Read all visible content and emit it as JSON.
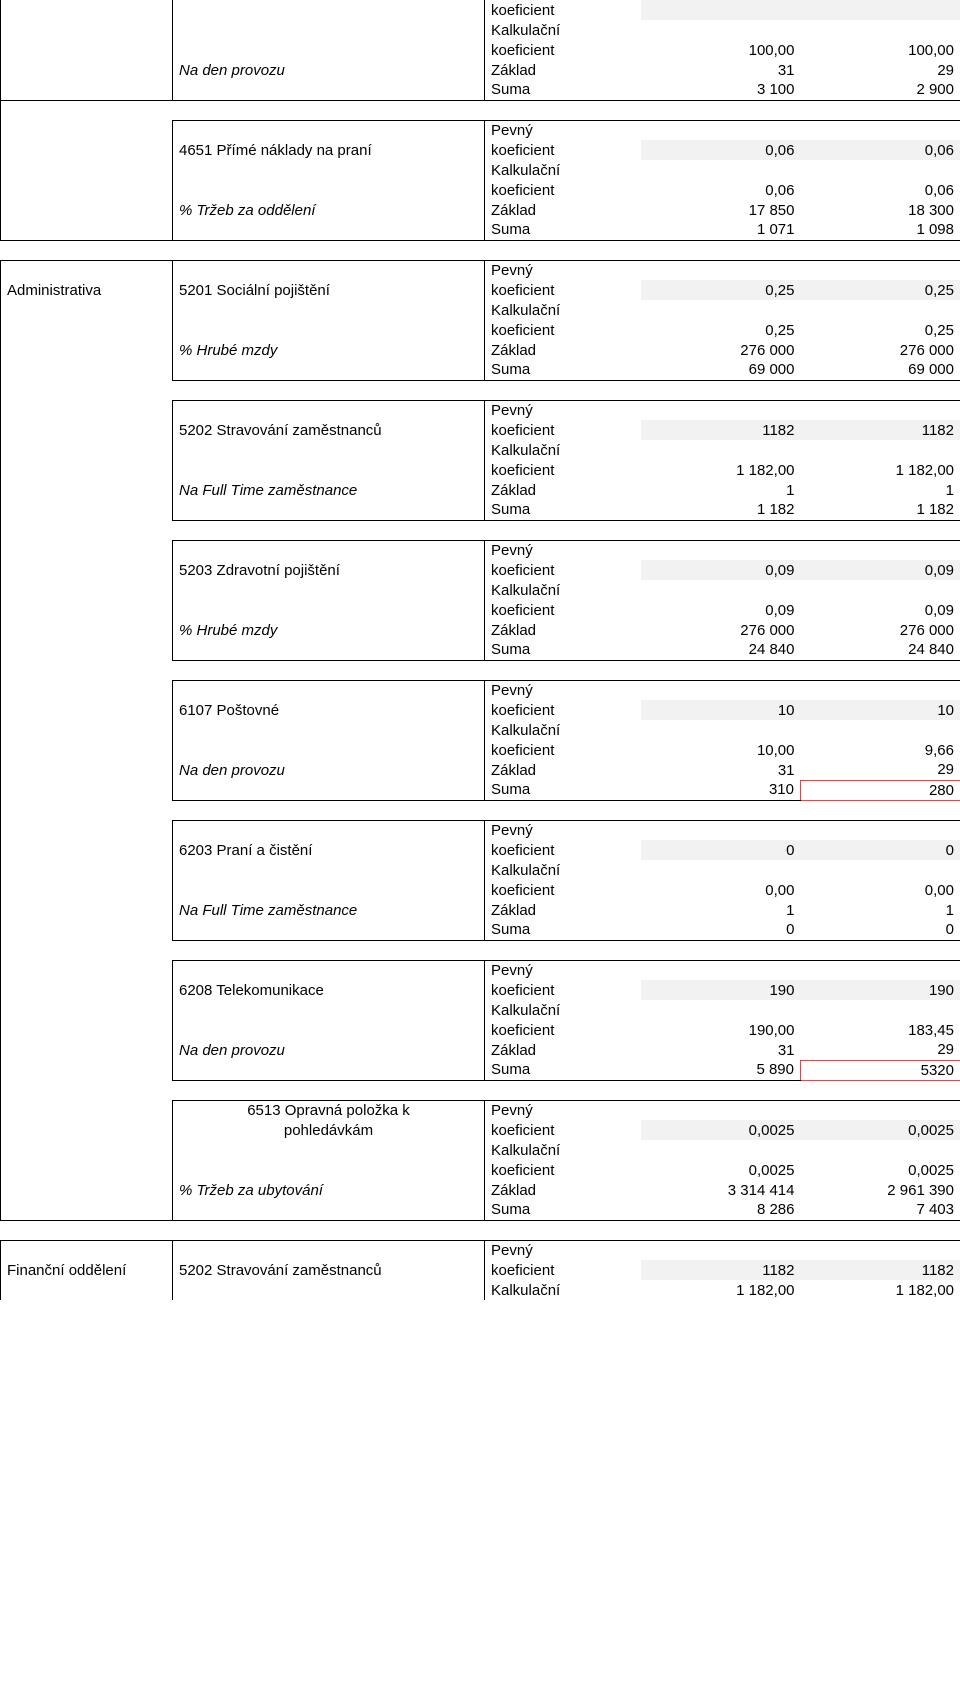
{
  "labels": {
    "koeficient": "koeficient",
    "kalkulacni": "Kalkulační",
    "pevny": "Pevný",
    "zaklad": "Základ",
    "suma": "Suma"
  },
  "rows": {
    "na_den_provozu": "Na den provozu",
    "pct_trzeb_za_oddeleni": "% Tržeb za oddělení",
    "pct_hrube_mzdy": "% Hrubé mzdy",
    "na_full_time_zamestnance": "Na Full Time zaměstnance",
    "pct_trzeb_za_ubytovani": "% Tržeb za ubytování"
  },
  "sections": {
    "administrativa": "Administrativa",
    "financni_oddeleni": "Finanční oddělení"
  },
  "block0": {
    "kalk_koef_v1": "100,00",
    "kalk_koef_v2": "100,00",
    "zaklad_v1": "31",
    "zaklad_v2": "29",
    "suma_v1": "3 100",
    "suma_v2": "2 900"
  },
  "block4651": {
    "title": "4651 Přímé náklady na praní",
    "pevny_v1": "0,06",
    "pevny_v2": "0,06",
    "kalk_v1": "0,06",
    "kalk_v2": "0,06",
    "zaklad_v1": "17 850",
    "zaklad_v2": "18 300",
    "suma_v1": "1 071",
    "suma_v2": "1 098"
  },
  "block5201": {
    "title": "5201 Sociální pojištění",
    "pevny_v1": "0,25",
    "pevny_v2": "0,25",
    "kalk_v1": "0,25",
    "kalk_v2": "0,25",
    "zaklad_v1": "276 000",
    "zaklad_v2": "276 000",
    "suma_v1": "69 000",
    "suma_v2": "69 000"
  },
  "block5202": {
    "title": "5202 Stravování zaměstnanců",
    "pevny_v1": "1182",
    "pevny_v2": "1182",
    "kalk_v1": "1 182,00",
    "kalk_v2": "1 182,00",
    "zaklad_v1": "1",
    "zaklad_v2": "1",
    "suma_v1": "1 182",
    "suma_v2": "1 182"
  },
  "block5203": {
    "title": "5203 Zdravotní pojištění",
    "pevny_v1": "0,09",
    "pevny_v2": "0,09",
    "kalk_v1": "0,09",
    "kalk_v2": "0,09",
    "zaklad_v1": "276 000",
    "zaklad_v2": "276 000",
    "suma_v1": "24 840",
    "suma_v2": "24 840"
  },
  "block6107": {
    "title": "6107 Poštovné",
    "pevny_v1": "10",
    "pevny_v2": "10",
    "kalk_v1": "10,00",
    "kalk_v2": "9,66",
    "zaklad_v1": "31",
    "zaklad_v2": "29",
    "suma_v1": "310",
    "suma_v2": "280"
  },
  "block6203": {
    "title": "6203 Praní a čistění",
    "pevny_v1": "0",
    "pevny_v2": "0",
    "kalk_v1": "0,00",
    "kalk_v2": "0,00",
    "zaklad_v1": "1",
    "zaklad_v2": "1",
    "suma_v1": "0",
    "suma_v2": "0"
  },
  "block6208": {
    "title": "6208 Telekomunikace",
    "pevny_v1": "190",
    "pevny_v2": "190",
    "kalk_v1": "190,00",
    "kalk_v2": "183,45",
    "zaklad_v1": "31",
    "zaklad_v2": "29",
    "suma_v1": "5 890",
    "suma_v2": "5320"
  },
  "block6513": {
    "title_l1": "6513 Opravná položka k",
    "title_l2": "pohledávkám",
    "pevny_v1": "0,0025",
    "pevny_v2": "0,0025",
    "kalk_v1": "0,0025",
    "kalk_v2": "0,0025",
    "zaklad_v1": "3 314 414",
    "zaklad_v2": "2 961 390",
    "suma_v1": "8 286",
    "suma_v2": "7 403"
  },
  "block5202b": {
    "title": "5202 Stravování zaměstnanců",
    "pevny_v1": "1182",
    "pevny_v2": "1182",
    "kalk_v1": "1 182,00",
    "kalk_v2": "1 182,00"
  },
  "colors": {
    "shade": "#f2f2f2",
    "background": "#ffffff",
    "border": "#000000",
    "highlight_border": "#d05050"
  }
}
